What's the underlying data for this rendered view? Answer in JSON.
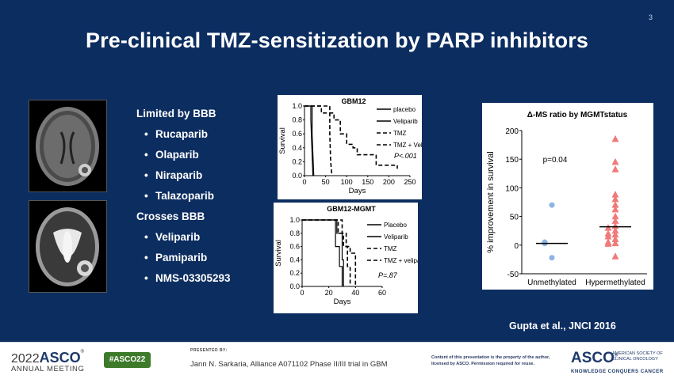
{
  "slide": {
    "number": "3",
    "title": "Pre-clinical TMZ-sensitization by PARP inhibitors",
    "citation": "Gupta et al., JNCI 2016"
  },
  "bullets": {
    "header1": "Limited by BBB",
    "group1": [
      "Rucaparib",
      "Olaparib",
      "Niraparib",
      "Talazoparib"
    ],
    "header2": "Crosses BBB",
    "group2": [
      "Veliparib",
      "Pamiparib",
      "NMS-03305293"
    ]
  },
  "chart_data": [
    {
      "type": "line",
      "title": "GBM12",
      "xlabel": "Days",
      "ylabel": "Survival",
      "xlim": [
        0,
        250
      ],
      "ylim": [
        0,
        1.0
      ],
      "xticks": [
        "0",
        "50",
        "100",
        "150",
        "200",
        "250"
      ],
      "yticks": [
        "0.0",
        "0.2",
        "0.4",
        "0.6",
        "0.8",
        "1.0"
      ],
      "annotation": "P<.001",
      "legend_position": "top-right",
      "series": [
        {
          "name": "placebo",
          "style": "solid",
          "x": [
            0,
            15,
            15,
            20
          ],
          "y": [
            1.0,
            1.0,
            0.8,
            0.0
          ]
        },
        {
          "name": "Veliparib",
          "style": "solid",
          "x": [
            0,
            18,
            18,
            22
          ],
          "y": [
            1.0,
            1.0,
            0.6,
            0.0
          ]
        },
        {
          "name": "TMZ",
          "style": "dashed",
          "x": [
            0,
            60,
            60,
            62,
            65
          ],
          "y": [
            1.0,
            1.0,
            0.6,
            0.2,
            0.0
          ]
        },
        {
          "name": "TMZ + Veliparib",
          "style": "dashed",
          "x": [
            0,
            40,
            40,
            70,
            70,
            85,
            85,
            100,
            100,
            115,
            115,
            125,
            125,
            170,
            170,
            220,
            220
          ],
          "y": [
            1.0,
            1.0,
            0.9,
            0.9,
            0.8,
            0.8,
            0.6,
            0.6,
            0.45,
            0.45,
            0.4,
            0.4,
            0.3,
            0.3,
            0.15,
            0.15,
            0.1
          ]
        }
      ]
    },
    {
      "type": "line",
      "title": "GBM12-MGMT",
      "xlabel": "Days",
      "ylabel": "Survival",
      "xlim": [
        0,
        60
      ],
      "ylim": [
        0,
        1.0
      ],
      "xticks": [
        "0",
        "20",
        "40",
        "60"
      ],
      "yticks": [
        "0.0",
        "0.2",
        "0.4",
        "0.6",
        "0.8",
        "1.0"
      ],
      "annotation": "P=.87",
      "legend_position": "top-right",
      "series": [
        {
          "name": "Placebo",
          "style": "solid",
          "x": [
            0,
            25,
            25,
            28,
            28,
            30,
            30
          ],
          "y": [
            1.0,
            1.0,
            0.6,
            0.6,
            0.3,
            0.3,
            0.0
          ]
        },
        {
          "name": "Veliparib",
          "style": "solid",
          "x": [
            0,
            26,
            26,
            30,
            30,
            31,
            31
          ],
          "y": [
            1.0,
            1.0,
            0.8,
            0.8,
            0.4,
            0.4,
            0.0
          ]
        },
        {
          "name": "TMZ",
          "style": "dashed",
          "x": [
            0,
            27,
            27,
            31,
            31,
            34,
            34,
            36,
            36
          ],
          "y": [
            1.0,
            1.0,
            0.8,
            0.8,
            0.6,
            0.6,
            0.3,
            0.3,
            0.0
          ]
        },
        {
          "name": "TMZ + veliparib",
          "style": "dashed",
          "x": [
            0,
            30,
            30,
            33,
            33,
            36,
            36,
            40,
            40
          ],
          "y": [
            1.0,
            1.0,
            0.8,
            0.8,
            0.6,
            0.6,
            0.5,
            0.5,
            0.0
          ]
        }
      ]
    },
    {
      "type": "scatter",
      "title": "Δ-MS ratio by MGMTstatus",
      "xlabel": "",
      "ylabel": "% improvement in survival",
      "categories": [
        "Unmethylated",
        "Hypermethylated"
      ],
      "ylim": [
        -50,
        200
      ],
      "yticks": [
        "-50",
        "0",
        "50",
        "100",
        "150",
        "200"
      ],
      "annotation": "p=0.04",
      "series": [
        {
          "name": "Unmethylated",
          "marker": "circle",
          "color": "#8fb4e3",
          "values": [
            70,
            5,
            5,
            3,
            3,
            -22
          ],
          "median": 3
        },
        {
          "name": "Hypermethylated",
          "marker": "triangle",
          "color": "#f07a7a",
          "values": [
            185,
            145,
            132,
            88,
            80,
            70,
            62,
            50,
            42,
            33,
            30,
            25,
            20,
            18,
            15,
            10,
            5,
            3,
            2,
            -20
          ],
          "median": 32
        }
      ]
    }
  ],
  "footer": {
    "year": "2022",
    "asco": "ASCO",
    "meeting": "ANNUAL MEETING",
    "hashtag": "#ASCO22",
    "presented_by": "PRESENTED BY:",
    "presenter": "Jann N. Sarkaria, Alliance A071102 Phase II/III trial in GBM",
    "copyright": "Content of this presentation is the property of the author, licensed by ASCO. Permission required for reuse.",
    "logo": "ASCO",
    "logo_sub": "AMERICAN SOCIETY OF CLINICAL ONCOLOGY",
    "tagline": "KNOWLEDGE CONQUERS CANCER"
  },
  "colors": {
    "background": "#0c2d60",
    "unmethylated": "#8fb4e3",
    "hypermethylated": "#f07a7a",
    "hashtag_bg": "#3d7a2a"
  }
}
